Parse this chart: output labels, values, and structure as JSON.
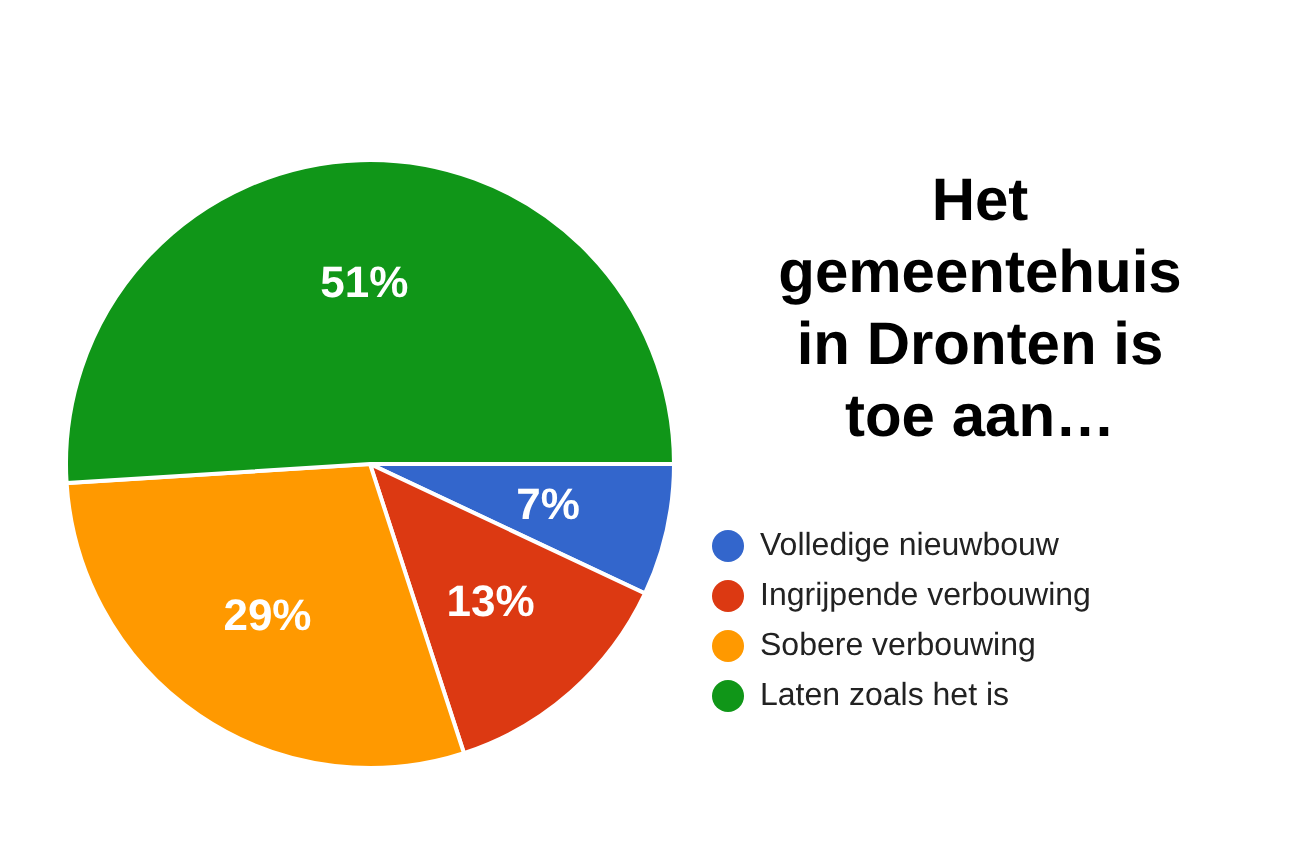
{
  "chart_data": {
    "type": "pie",
    "title": "Het gemeentehuis in Dronten is toe aan…",
    "categories": [
      "Volledige nieuwbouw",
      "Ingrijpende verbouwing",
      "Sobere verbouwing",
      "Laten zoals het is"
    ],
    "values": [
      7,
      13,
      29,
      51
    ],
    "colors": [
      "#3366cc",
      "#dc3912",
      "#ff9900",
      "#109618"
    ],
    "value_labels": [
      "7%",
      "13%",
      "29%",
      "51%"
    ],
    "legend": "right"
  }
}
